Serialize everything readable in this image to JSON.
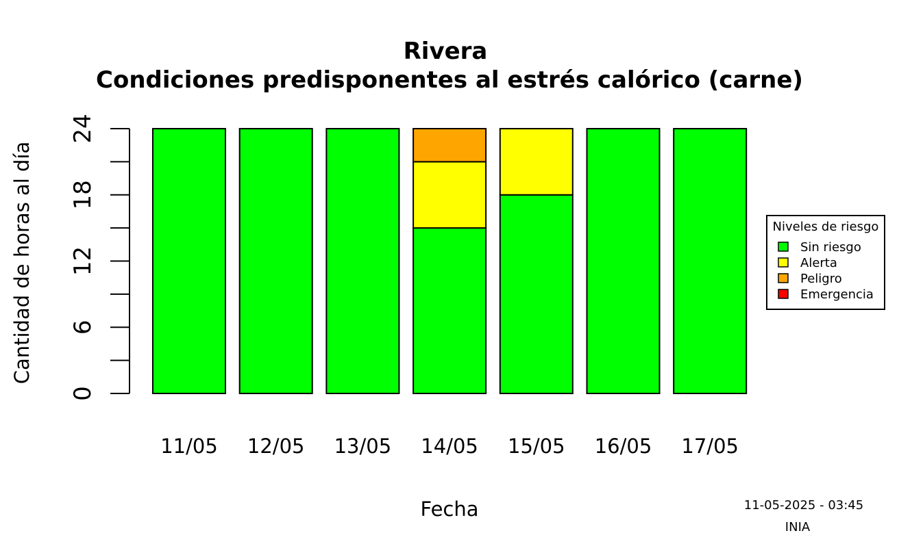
{
  "chart_data": {
    "type": "bar",
    "stacked": true,
    "title": "Rivera",
    "subtitle": "Condiciones predisponentes al estrés calórico (carne)",
    "xlabel": "Fecha",
    "ylabel": "Cantidad de horas al día",
    "categories": [
      "11/05",
      "12/05",
      "13/05",
      "14/05",
      "15/05",
      "16/05",
      "17/05"
    ],
    "ylim": [
      0,
      24
    ],
    "yticks": [
      0,
      6,
      12,
      18,
      24
    ],
    "yminor_ticks": [
      3,
      9,
      15,
      21
    ],
    "grid": false,
    "series": [
      {
        "name": "Sin riesgo",
        "color": "#00ff00",
        "values": [
          24,
          24,
          24,
          15,
          18,
          24,
          24
        ]
      },
      {
        "name": "Alerta",
        "color": "#ffff00",
        "values": [
          0,
          0,
          0,
          6,
          6,
          0,
          0
        ]
      },
      {
        "name": "Peligro",
        "color": "#ffa500",
        "values": [
          0,
          0,
          0,
          3,
          0,
          0,
          0
        ]
      },
      {
        "name": "Emergencia",
        "color": "#ff0000",
        "values": [
          0,
          0,
          0,
          0,
          0,
          0,
          0
        ]
      }
    ],
    "legend": {
      "title": "Niveles de riesgo",
      "placement": "right"
    }
  },
  "footer": {
    "timestamp": "11-05-2025 - 03:45",
    "source": "INIA"
  }
}
